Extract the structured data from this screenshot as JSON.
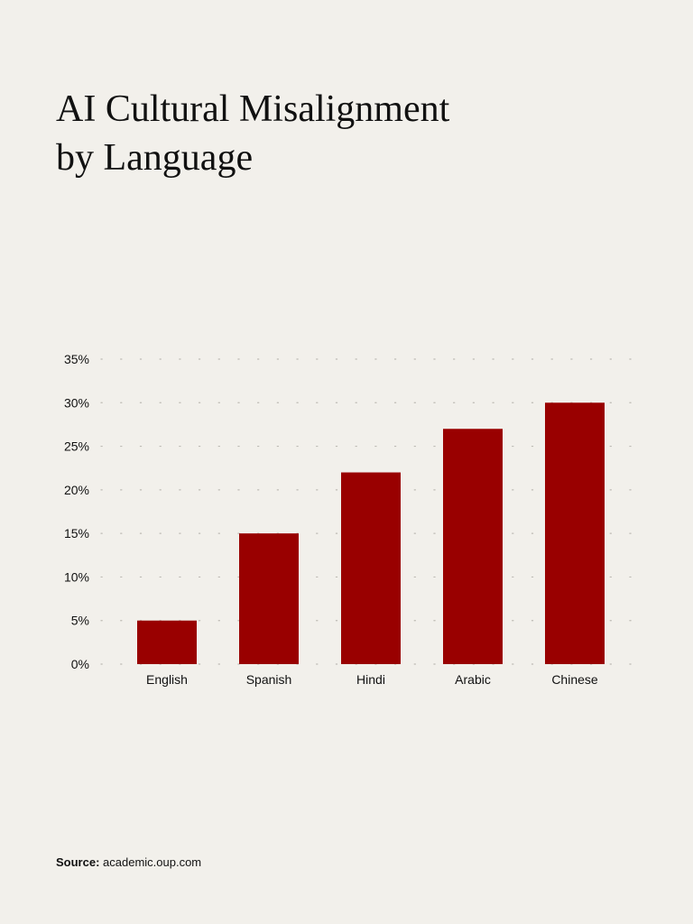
{
  "title": {
    "line1": "AI Cultural Misalignment",
    "line2": "by Language"
  },
  "source": {
    "label": "Source:",
    "text": "academic.oup.com"
  },
  "colors": {
    "bar": "#990000",
    "background": "#f2f0eb",
    "grid": "#bdbab4",
    "text": "#111111"
  },
  "chart_data": {
    "type": "bar",
    "categories": [
      "English",
      "Spanish",
      "Hindi",
      "Arabic",
      "Chinese"
    ],
    "values": [
      5,
      15,
      22,
      27,
      30
    ],
    "value_unit": "%",
    "ylim": [
      0,
      35
    ],
    "yticks": [
      0,
      5,
      10,
      15,
      20,
      25,
      30,
      35
    ],
    "ytick_labels": [
      "0%",
      "5%",
      "10%",
      "15%",
      "20%",
      "25%",
      "30%",
      "35%"
    ],
    "grid": "dotted-horizontal",
    "legend": "none"
  }
}
